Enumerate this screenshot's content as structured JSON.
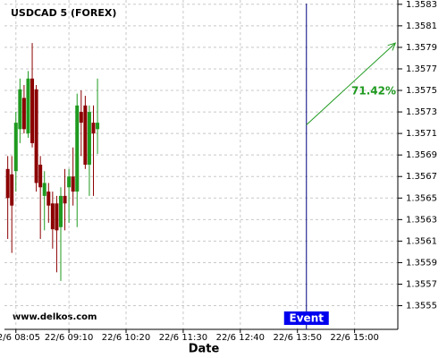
{
  "chart_data": {
    "type": "candlestick",
    "title": "USDCAD 5 (FOREX)",
    "watermark": "www.delkos.com",
    "x_label": "Date",
    "x": [
      "22/6 07:55",
      "22/6 08:00",
      "22/6 08:05",
      "22/6 08:10",
      "22/6 08:15",
      "22/6 08:20",
      "22/6 08:25",
      "22/6 08:30",
      "22/6 08:35",
      "22/6 08:40",
      "22/6 08:45",
      "22/6 08:50",
      "22/6 08:55",
      "22/6 09:00",
      "22/6 09:05",
      "22/6 09:10",
      "22/6 09:15",
      "22/6 09:20",
      "22/6 09:25",
      "22/6 09:30",
      "22/6 09:35",
      "22/6 09:40",
      "22/6 09:45"
    ],
    "open": [
      1.35677,
      1.35672,
      1.35675,
      1.35714,
      1.35743,
      1.3571,
      1.35761,
      1.35751,
      1.35681,
      1.35652,
      1.35656,
      1.35645,
      1.35645,
      1.35623,
      1.35652,
      1.3566,
      1.3567,
      1.35656,
      1.3573,
      1.35736,
      1.35681,
      1.3572,
      1.35714
    ],
    "high": [
      1.35689,
      1.35689,
      1.3573,
      1.35761,
      1.35755,
      1.35768,
      1.35794,
      1.35755,
      1.35689,
      1.35675,
      1.35664,
      1.35656,
      1.35652,
      1.3566,
      1.35677,
      1.35677,
      1.35697,
      1.35747,
      1.3575,
      1.35745,
      1.35736,
      1.35736,
      1.35761
    ],
    "low": [
      1.35612,
      1.35599,
      1.35656,
      1.35701,
      1.3571,
      1.35706,
      1.35697,
      1.35656,
      1.35612,
      1.3562,
      1.35627,
      1.35603,
      1.35581,
      1.35573,
      1.3562,
      1.35627,
      1.35643,
      1.35623,
      1.35689,
      1.35677,
      1.35652,
      1.35652,
      1.35691
    ],
    "close": [
      1.3565,
      1.35643,
      1.3572,
      1.35751,
      1.35714,
      1.35761,
      1.35701,
      1.35664,
      1.3566,
      1.35664,
      1.35643,
      1.35621,
      1.3562,
      1.35652,
      1.35645,
      1.3567,
      1.35656,
      1.35736,
      1.3572,
      1.35681,
      1.3573,
      1.3571,
      1.3572
    ],
    "up_color": "#1f9a1f",
    "down_color": "#8b0000",
    "xlim": [
      "22/6 07:51",
      "22/6 15:53"
    ],
    "xticks": [
      "22/6 08:05",
      "22/6 09:10",
      "22/6 10:20",
      "22/6 11:30",
      "22/6 12:40",
      "22/6 13:50",
      "22/6 15:00"
    ],
    "ylim": [
      1.35528,
      1.35834
    ],
    "yticks": [
      1.3555,
      1.3557,
      1.3559,
      1.3561,
      1.3563,
      1.3565,
      1.3567,
      1.3569,
      1.3571,
      1.3573,
      1.3575,
      1.3577,
      1.3579,
      1.3581,
      1.3583
    ],
    "grid": true,
    "event": {
      "x": "22/6 14:01",
      "label": "Event",
      "color": "#000080"
    },
    "arrow": {
      "x": [
        "22/6 14:01",
        "22/6 15:50"
      ],
      "values": [
        1.35718,
        1.35794
      ],
      "label": "71.42%",
      "color": "#1f9a1f"
    }
  }
}
